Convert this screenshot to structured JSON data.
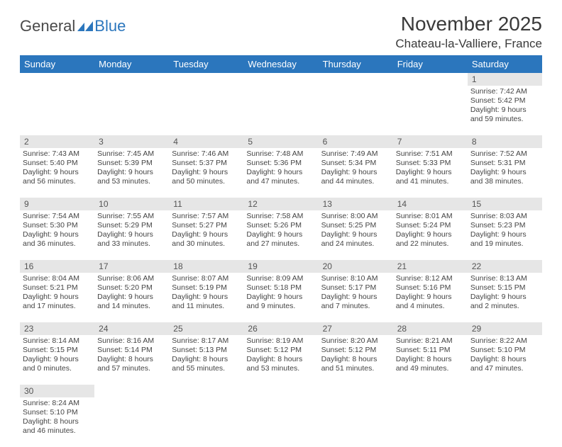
{
  "brand": {
    "part1": "General",
    "part2": "Blue"
  },
  "title": "November 2025",
  "location": "Chateau-la-Valliere, France",
  "colors": {
    "header_bg": "#2b76bd",
    "header_text": "#ffffff",
    "daynum_bg": "#e6e6e6",
    "rule": "#2b76bd",
    "text": "#444444",
    "page_bg": "#ffffff"
  },
  "day_labels": [
    "Sunday",
    "Monday",
    "Tuesday",
    "Wednesday",
    "Thursday",
    "Friday",
    "Saturday"
  ],
  "weeks": [
    {
      "nums": [
        "",
        "",
        "",
        "",
        "",
        "",
        "1"
      ],
      "cells": [
        null,
        null,
        null,
        null,
        null,
        null,
        {
          "sunrise": "7:42 AM",
          "sunset": "5:42 PM",
          "dl_h": "9",
          "dl_m": "59"
        }
      ]
    },
    {
      "nums": [
        "2",
        "3",
        "4",
        "5",
        "6",
        "7",
        "8"
      ],
      "cells": [
        {
          "sunrise": "7:43 AM",
          "sunset": "5:40 PM",
          "dl_h": "9",
          "dl_m": "56"
        },
        {
          "sunrise": "7:45 AM",
          "sunset": "5:39 PM",
          "dl_h": "9",
          "dl_m": "53"
        },
        {
          "sunrise": "7:46 AM",
          "sunset": "5:37 PM",
          "dl_h": "9",
          "dl_m": "50"
        },
        {
          "sunrise": "7:48 AM",
          "sunset": "5:36 PM",
          "dl_h": "9",
          "dl_m": "47"
        },
        {
          "sunrise": "7:49 AM",
          "sunset": "5:34 PM",
          "dl_h": "9",
          "dl_m": "44"
        },
        {
          "sunrise": "7:51 AM",
          "sunset": "5:33 PM",
          "dl_h": "9",
          "dl_m": "41"
        },
        {
          "sunrise": "7:52 AM",
          "sunset": "5:31 PM",
          "dl_h": "9",
          "dl_m": "38"
        }
      ]
    },
    {
      "nums": [
        "9",
        "10",
        "11",
        "12",
        "13",
        "14",
        "15"
      ],
      "cells": [
        {
          "sunrise": "7:54 AM",
          "sunset": "5:30 PM",
          "dl_h": "9",
          "dl_m": "36"
        },
        {
          "sunrise": "7:55 AM",
          "sunset": "5:29 PM",
          "dl_h": "9",
          "dl_m": "33"
        },
        {
          "sunrise": "7:57 AM",
          "sunset": "5:27 PM",
          "dl_h": "9",
          "dl_m": "30"
        },
        {
          "sunrise": "7:58 AM",
          "sunset": "5:26 PM",
          "dl_h": "9",
          "dl_m": "27"
        },
        {
          "sunrise": "8:00 AM",
          "sunset": "5:25 PM",
          "dl_h": "9",
          "dl_m": "24"
        },
        {
          "sunrise": "8:01 AM",
          "sunset": "5:24 PM",
          "dl_h": "9",
          "dl_m": "22"
        },
        {
          "sunrise": "8:03 AM",
          "sunset": "5:23 PM",
          "dl_h": "9",
          "dl_m": "19"
        }
      ]
    },
    {
      "nums": [
        "16",
        "17",
        "18",
        "19",
        "20",
        "21",
        "22"
      ],
      "cells": [
        {
          "sunrise": "8:04 AM",
          "sunset": "5:21 PM",
          "dl_h": "9",
          "dl_m": "17"
        },
        {
          "sunrise": "8:06 AM",
          "sunset": "5:20 PM",
          "dl_h": "9",
          "dl_m": "14"
        },
        {
          "sunrise": "8:07 AM",
          "sunset": "5:19 PM",
          "dl_h": "9",
          "dl_m": "11"
        },
        {
          "sunrise": "8:09 AM",
          "sunset": "5:18 PM",
          "dl_h": "9",
          "dl_m": "9"
        },
        {
          "sunrise": "8:10 AM",
          "sunset": "5:17 PM",
          "dl_h": "9",
          "dl_m": "7"
        },
        {
          "sunrise": "8:12 AM",
          "sunset": "5:16 PM",
          "dl_h": "9",
          "dl_m": "4"
        },
        {
          "sunrise": "8:13 AM",
          "sunset": "5:15 PM",
          "dl_h": "9",
          "dl_m": "2"
        }
      ]
    },
    {
      "nums": [
        "23",
        "24",
        "25",
        "26",
        "27",
        "28",
        "29"
      ],
      "cells": [
        {
          "sunrise": "8:14 AM",
          "sunset": "5:15 PM",
          "dl_h": "9",
          "dl_m": "0"
        },
        {
          "sunrise": "8:16 AM",
          "sunset": "5:14 PM",
          "dl_h": "8",
          "dl_m": "57"
        },
        {
          "sunrise": "8:17 AM",
          "sunset": "5:13 PM",
          "dl_h": "8",
          "dl_m": "55"
        },
        {
          "sunrise": "8:19 AM",
          "sunset": "5:12 PM",
          "dl_h": "8",
          "dl_m": "53"
        },
        {
          "sunrise": "8:20 AM",
          "sunset": "5:12 PM",
          "dl_h": "8",
          "dl_m": "51"
        },
        {
          "sunrise": "8:21 AM",
          "sunset": "5:11 PM",
          "dl_h": "8",
          "dl_m": "49"
        },
        {
          "sunrise": "8:22 AM",
          "sunset": "5:10 PM",
          "dl_h": "8",
          "dl_m": "47"
        }
      ]
    },
    {
      "nums": [
        "30",
        "",
        "",
        "",
        "",
        "",
        ""
      ],
      "cells": [
        {
          "sunrise": "8:24 AM",
          "sunset": "5:10 PM",
          "dl_h": "8",
          "dl_m": "46"
        },
        null,
        null,
        null,
        null,
        null,
        null
      ]
    }
  ]
}
